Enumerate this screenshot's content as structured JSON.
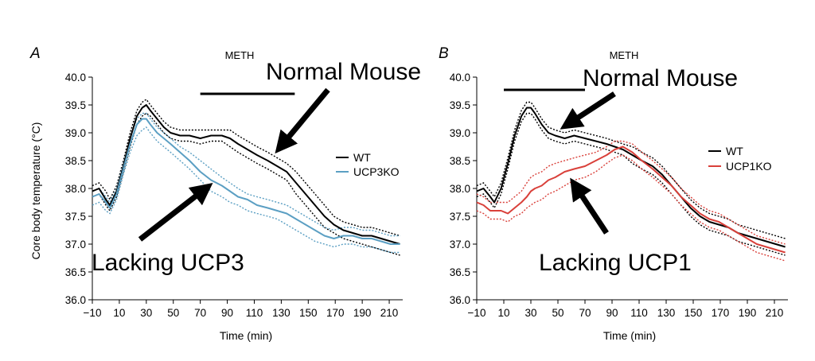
{
  "chart_data": [
    {
      "type": "line",
      "panel_label": "A",
      "bar_label": "METH",
      "meth_bar": [
        70,
        140
      ],
      "xlabel": "Time (min)",
      "ylabel": "Core body temperature (°C)",
      "xlim": [
        -10,
        220
      ],
      "ylim": [
        36.0,
        40.0
      ],
      "xticks": [
        "−10",
        "10",
        "30",
        "50",
        "70",
        "90",
        "110",
        "130",
        "150",
        "170",
        "190",
        "210"
      ],
      "yticks": [
        "36.0",
        "36.5",
        "37.0",
        "37.5",
        "38.0",
        "38.5",
        "39.0",
        "39.5",
        "40.0"
      ],
      "legend": [
        "WT",
        "UCP3KO"
      ],
      "series": [
        {
          "name": "WT",
          "color": "#000000",
          "x": [
            -10,
            -5,
            0,
            3,
            8,
            13,
            18,
            23,
            27,
            30,
            33,
            38,
            43,
            48,
            55,
            62,
            70,
            78,
            86,
            92,
            98,
            105,
            112,
            120,
            127,
            134,
            141,
            148,
            155,
            162,
            169,
            176,
            183,
            190,
            197,
            204,
            211,
            218
          ],
          "y": [
            37.95,
            38.0,
            37.8,
            37.7,
            37.95,
            38.4,
            38.9,
            39.3,
            39.45,
            39.5,
            39.4,
            39.25,
            39.1,
            39.0,
            38.95,
            38.95,
            38.9,
            38.95,
            38.95,
            38.9,
            38.8,
            38.7,
            38.6,
            38.5,
            38.4,
            38.3,
            38.1,
            37.9,
            37.7,
            37.5,
            37.35,
            37.25,
            37.2,
            37.15,
            37.15,
            37.1,
            37.05,
            37.0
          ],
          "upper": [
            38.05,
            38.1,
            37.95,
            37.8,
            38.05,
            38.5,
            39.0,
            39.4,
            39.55,
            39.6,
            39.5,
            39.35,
            39.2,
            39.1,
            39.05,
            39.05,
            39.05,
            39.05,
            39.05,
            39.05,
            38.95,
            38.85,
            38.75,
            38.65,
            38.55,
            38.45,
            38.3,
            38.1,
            37.9,
            37.7,
            37.5,
            37.4,
            37.35,
            37.3,
            37.3,
            37.25,
            37.2,
            37.15
          ],
          "lower": [
            37.85,
            37.9,
            37.7,
            37.6,
            37.85,
            38.3,
            38.75,
            39.15,
            39.3,
            39.35,
            39.3,
            39.15,
            39.0,
            38.9,
            38.85,
            38.85,
            38.8,
            38.85,
            38.85,
            38.75,
            38.65,
            38.55,
            38.45,
            38.35,
            38.25,
            38.15,
            37.9,
            37.7,
            37.5,
            37.3,
            37.2,
            37.1,
            37.05,
            37.0,
            36.95,
            36.9,
            36.85,
            36.8
          ]
        },
        {
          "name": "UCP3KO",
          "color": "#5b9fc3",
          "x": [
            -10,
            -5,
            0,
            3,
            8,
            13,
            18,
            23,
            27,
            30,
            33,
            38,
            43,
            48,
            55,
            62,
            70,
            78,
            86,
            92,
            98,
            105,
            112,
            120,
            127,
            134,
            141,
            148,
            155,
            162,
            169,
            176,
            183,
            190,
            197,
            204,
            211,
            218
          ],
          "y": [
            37.85,
            37.9,
            37.75,
            37.65,
            37.9,
            38.35,
            38.8,
            39.15,
            39.25,
            39.25,
            39.15,
            39.0,
            38.9,
            38.8,
            38.65,
            38.5,
            38.3,
            38.15,
            38.05,
            37.95,
            37.85,
            37.8,
            37.7,
            37.65,
            37.6,
            37.55,
            37.45,
            37.35,
            37.25,
            37.15,
            37.1,
            37.15,
            37.15,
            37.1,
            37.1,
            37.05,
            37.0,
            37.0
          ],
          "upper": [
            37.95,
            38.0,
            37.85,
            37.75,
            38.0,
            38.45,
            38.9,
            39.25,
            39.35,
            39.35,
            39.25,
            39.1,
            39.0,
            38.9,
            38.75,
            38.65,
            38.5,
            38.35,
            38.2,
            38.1,
            38.0,
            37.9,
            37.85,
            37.8,
            37.75,
            37.7,
            37.6,
            37.5,
            37.4,
            37.3,
            37.25,
            37.3,
            37.3,
            37.25,
            37.25,
            37.2,
            37.15,
            37.15
          ],
          "lower": [
            37.7,
            37.75,
            37.6,
            37.55,
            37.8,
            38.25,
            38.65,
            38.95,
            39.05,
            39.1,
            39.0,
            38.85,
            38.75,
            38.65,
            38.5,
            38.35,
            38.15,
            37.95,
            37.85,
            37.75,
            37.7,
            37.6,
            37.55,
            37.5,
            37.45,
            37.35,
            37.25,
            37.15,
            37.05,
            37.0,
            36.95,
            37.0,
            37.0,
            36.95,
            36.95,
            36.9,
            36.85,
            36.85
          ]
        }
      ],
      "annotations": [
        {
          "text": "Normal Mouse"
        },
        {
          "text": "Lacking UCP3"
        }
      ]
    },
    {
      "type": "line",
      "panel_label": "B",
      "bar_label": "METH",
      "meth_bar": [
        10,
        70
      ],
      "xlabel": "Time (min)",
      "ylabel": "",
      "xlim": [
        -10,
        220
      ],
      "ylim": [
        36.0,
        40.0
      ],
      "xticks": [
        "−10",
        "10",
        "30",
        "50",
        "70",
        "90",
        "110",
        "130",
        "150",
        "170",
        "190",
        "210"
      ],
      "yticks": [
        "36.0",
        "36.5",
        "37.0",
        "37.5",
        "38.0",
        "38.5",
        "39.0",
        "39.5",
        "40.0"
      ],
      "legend": [
        "WT",
        "UCP1KO"
      ],
      "series": [
        {
          "name": "WT",
          "color": "#000000",
          "x": [
            -10,
            -5,
            0,
            3,
            8,
            13,
            18,
            23,
            27,
            30,
            33,
            38,
            43,
            48,
            55,
            62,
            70,
            78,
            86,
            92,
            98,
            105,
            112,
            120,
            127,
            134,
            141,
            148,
            155,
            162,
            169,
            176,
            183,
            190,
            197,
            204,
            211,
            218
          ],
          "y": [
            37.95,
            38.0,
            37.85,
            37.75,
            38.0,
            38.45,
            38.95,
            39.3,
            39.45,
            39.45,
            39.35,
            39.15,
            39.0,
            38.95,
            38.9,
            38.95,
            38.9,
            38.85,
            38.8,
            38.75,
            38.7,
            38.6,
            38.5,
            38.4,
            38.25,
            38.05,
            37.85,
            37.65,
            37.5,
            37.4,
            37.35,
            37.3,
            37.2,
            37.15,
            37.1,
            37.05,
            37.0,
            36.95
          ],
          "upper": [
            38.05,
            38.1,
            37.95,
            37.85,
            38.1,
            38.55,
            39.05,
            39.4,
            39.55,
            39.55,
            39.45,
            39.25,
            39.1,
            39.05,
            39.0,
            39.05,
            39.0,
            38.95,
            38.9,
            38.85,
            38.8,
            38.75,
            38.65,
            38.55,
            38.4,
            38.2,
            38.0,
            37.8,
            37.65,
            37.55,
            37.5,
            37.45,
            37.35,
            37.3,
            37.25,
            37.2,
            37.15,
            37.1
          ],
          "lower": [
            37.85,
            37.9,
            37.75,
            37.65,
            37.9,
            38.35,
            38.85,
            39.2,
            39.35,
            39.35,
            39.25,
            39.05,
            38.9,
            38.85,
            38.8,
            38.85,
            38.8,
            38.75,
            38.7,
            38.65,
            38.6,
            38.45,
            38.35,
            38.25,
            38.1,
            37.9,
            37.7,
            37.5,
            37.35,
            37.25,
            37.2,
            37.15,
            37.05,
            37.0,
            36.95,
            36.9,
            36.85,
            36.8
          ]
        },
        {
          "name": "UCP1KO",
          "color": "#d9403a",
          "x": [
            -10,
            -5,
            0,
            3,
            8,
            13,
            18,
            23,
            27,
            30,
            33,
            38,
            43,
            48,
            55,
            62,
            70,
            78,
            86,
            92,
            98,
            105,
            112,
            120,
            127,
            134,
            141,
            148,
            155,
            162,
            169,
            176,
            183,
            190,
            197,
            204,
            211,
            218
          ],
          "y": [
            37.75,
            37.7,
            37.6,
            37.6,
            37.6,
            37.55,
            37.65,
            37.75,
            37.85,
            37.95,
            38.0,
            38.05,
            38.15,
            38.2,
            38.3,
            38.35,
            38.4,
            38.5,
            38.6,
            38.7,
            38.75,
            38.65,
            38.5,
            38.35,
            38.2,
            38.05,
            37.85,
            37.7,
            37.55,
            37.45,
            37.4,
            37.3,
            37.2,
            37.1,
            37.0,
            36.95,
            36.9,
            36.85
          ],
          "upper": [
            37.9,
            37.85,
            37.75,
            37.75,
            37.75,
            37.75,
            37.85,
            37.95,
            38.1,
            38.2,
            38.25,
            38.3,
            38.4,
            38.45,
            38.5,
            38.55,
            38.6,
            38.65,
            38.75,
            38.85,
            38.85,
            38.8,
            38.65,
            38.5,
            38.35,
            38.2,
            38.0,
            37.85,
            37.7,
            37.6,
            37.55,
            37.45,
            37.35,
            37.25,
            37.15,
            37.1,
            37.05,
            37.0
          ],
          "lower": [
            37.6,
            37.55,
            37.45,
            37.45,
            37.45,
            37.4,
            37.5,
            37.55,
            37.65,
            37.7,
            37.75,
            37.8,
            37.9,
            37.95,
            38.05,
            38.15,
            38.2,
            38.3,
            38.45,
            38.55,
            38.6,
            38.5,
            38.35,
            38.2,
            38.05,
            37.9,
            37.7,
            37.55,
            37.4,
            37.3,
            37.25,
            37.15,
            37.05,
            36.95,
            36.85,
            36.8,
            36.75,
            36.7
          ]
        }
      ],
      "annotations": [
        {
          "text": "Normal Mouse"
        },
        {
          "text": "Lacking UCP1"
        }
      ]
    }
  ]
}
